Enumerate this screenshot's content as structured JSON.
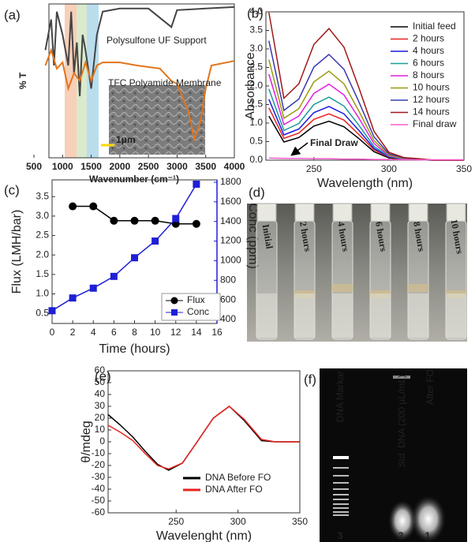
{
  "chart_data": [
    {
      "type": "line",
      "panel": "(a)",
      "xlabel": "Wavenumber (cm⁻¹)",
      "ylabel": "% T",
      "xlim": [
        500,
        4000
      ],
      "xticks": [
        500,
        1000,
        1500,
        2000,
        2500,
        3000,
        3500,
        4000
      ],
      "ylim": [
        0,
        100
      ],
      "series": [
        {
          "name": "Polysulfone UF Support",
          "color": "#444444",
          "x": [
            700,
            800,
            850,
            900,
            1000,
            1100,
            1150,
            1200,
            1250,
            1300,
            1350,
            1400,
            1500,
            1600,
            1700,
            2000,
            2500,
            2900,
            3000,
            3500,
            4000
          ],
          "values": [
            70,
            90,
            60,
            95,
            80,
            60,
            95,
            55,
            75,
            40,
            80,
            70,
            45,
            80,
            95,
            97,
            97,
            85,
            96,
            97,
            98
          ]
        },
        {
          "name": "TFC Polyamide Membrane",
          "color": "#e2741b",
          "x": [
            700,
            800,
            900,
            1000,
            1100,
            1200,
            1300,
            1400,
            1500,
            1600,
            1700,
            2000,
            2300,
            2700,
            2900,
            3000,
            3200,
            3300,
            3400,
            3500,
            3600,
            4000
          ],
          "values": [
            60,
            70,
            58,
            62,
            45,
            55,
            50,
            62,
            50,
            60,
            62,
            62,
            60,
            58,
            50,
            48,
            30,
            12,
            22,
            45,
            60,
            63
          ]
        }
      ],
      "annotations": [
        "1μm"
      ]
    },
    {
      "type": "line",
      "panel": "(b)",
      "xlabel": "Wavelength (nm)",
      "ylabel": "Absorbance",
      "xlim": [
        218,
        350
      ],
      "xticks": [
        250,
        300,
        350
      ],
      "ylim": [
        0,
        4
      ],
      "yticks": [
        {
          "value": 0,
          "label": "0.0"
        },
        0.5,
        {
          "value": 1,
          "label": "1.0"
        },
        1.5,
        {
          "value": 2,
          "label": "2.0"
        },
        2.5,
        {
          "value": 3,
          "label": "3.0"
        },
        3.5,
        {
          "value": 4,
          "label": "4.0"
        }
      ],
      "x": [
        220,
        230,
        240,
        250,
        260,
        270,
        280,
        290,
        300,
        310,
        320,
        330,
        340,
        350
      ],
      "series": [
        {
          "name": "Initial feed",
          "color": "#000000",
          "values": [
            1.19,
            0.49,
            0.61,
            0.92,
            1.05,
            0.9,
            0.58,
            0.23,
            0.06,
            0.02,
            0.01,
            0,
            0,
            0
          ]
        },
        {
          "name": "2 hours",
          "color": "#e8231f",
          "values": [
            1.41,
            0.59,
            0.73,
            1.1,
            1.25,
            1.08,
            0.69,
            0.28,
            0.08,
            0.03,
            0.01,
            0,
            0,
            0
          ]
        },
        {
          "name": "4 hours",
          "color": "#1a1adf",
          "values": [
            1.64,
            0.68,
            0.84,
            1.28,
            1.45,
            1.25,
            0.8,
            0.32,
            0.09,
            0.03,
            0.01,
            0,
            0,
            0
          ]
        },
        {
          "name": "6 hours",
          "color": "#1a9a9a",
          "values": [
            1.92,
            0.8,
            0.99,
            1.5,
            1.7,
            1.46,
            0.94,
            0.37,
            0.1,
            0.03,
            0.02,
            0,
            0,
            0
          ]
        },
        {
          "name": "8 hours",
          "color": "#e020e0",
          "values": [
            2.32,
            0.96,
            1.19,
            1.8,
            2.05,
            1.76,
            1.13,
            0.45,
            0.12,
            0.04,
            0.02,
            0,
            0,
            0
          ]
        },
        {
          "name": "10 hours",
          "color": "#9a9a10",
          "values": [
            2.71,
            1.13,
            1.39,
            2.11,
            2.4,
            2.06,
            1.32,
            0.53,
            0.14,
            0.05,
            0.02,
            0,
            0,
            0
          ]
        },
        {
          "name": "12 hours",
          "color": "#3a3ab0",
          "values": [
            3.22,
            1.34,
            1.65,
            2.51,
            2.85,
            2.45,
            1.57,
            0.63,
            0.17,
            0.06,
            0.03,
            0,
            0,
            0
          ]
        },
        {
          "name": "14 hours",
          "color": "#a01818",
          "values": [
            3.98,
            1.67,
            2.06,
            3.12,
            3.55,
            3.05,
            1.95,
            0.78,
            0.21,
            0.07,
            0.04,
            0,
            0,
            0
          ]
        },
        {
          "name": "Final draw",
          "color": "#ff5ccd",
          "values": [
            0.06,
            0.05,
            0.05,
            0.04,
            0.04,
            0.03,
            0.03,
            0.02,
            0.02,
            0.01,
            0.01,
            0.01,
            0.01,
            0.01
          ]
        }
      ],
      "legend": "upper right",
      "annotations": [
        "Final Draw"
      ]
    },
    {
      "type": "line",
      "panel": "(c)",
      "xlabel": "Time (hours)",
      "ylabel": "Flux (LMH/bar)",
      "y2label": "Conc (ppm)",
      "xlim": [
        0,
        16
      ],
      "xticks": [
        0,
        2,
        4,
        6,
        8,
        10,
        12,
        14,
        16
      ],
      "ylim": [
        0.24,
        3.93
      ],
      "yticks": [
        0.5,
        {
          "value": 1,
          "label": "1.0"
        },
        1.5,
        {
          "value": 2,
          "label": "2.0"
        },
        2.5,
        {
          "value": 3,
          "label": "3.0"
        },
        3.5
      ],
      "y2lim": [
        360,
        1824
      ],
      "y2ticks": [
        400,
        600,
        800,
        1000,
        1200,
        1400,
        1600,
        1800
      ],
      "series": [
        {
          "name": "Flux",
          "color": "#000000",
          "marker": "circle",
          "x": [
            2,
            4,
            6,
            8,
            10,
            12,
            14
          ],
          "values": [
            3.25,
            3.25,
            2.88,
            2.88,
            2.88,
            2.8,
            2.8
          ]
        },
        {
          "name": "Conc",
          "color": "#1f1fd6",
          "marker": "square",
          "axis": "y2",
          "x": [
            0,
            2,
            4,
            6,
            8,
            10,
            12,
            14
          ],
          "values": [
            490,
            620,
            720,
            840,
            1030,
            1200,
            1430,
            1780
          ]
        }
      ],
      "legend": "lower right"
    },
    {
      "type": "line",
      "panel": "(e)",
      "xlabel": "Wavelenght (nm)",
      "ylabel": "θ/mdeg",
      "xlim": [
        195,
        350
      ],
      "xticks": [
        250,
        300,
        350
      ],
      "ylim": [
        -60,
        60
      ],
      "yticks": [
        -60,
        -50,
        -40,
        -30,
        -20,
        -10,
        0,
        10,
        20,
        30,
        40,
        50,
        60
      ],
      "x": [
        195,
        205,
        215,
        225,
        235,
        244,
        255,
        267,
        280,
        293,
        305,
        319,
        330,
        340,
        350
      ],
      "series": [
        {
          "name": "DNA Before FO",
          "color": "#000000",
          "values": [
            23,
            14,
            4,
            -8,
            -19,
            -24,
            -18,
            0,
            20,
            30,
            18,
            1,
            0,
            0,
            0
          ]
        },
        {
          "name": "DNA After FO",
          "color": "#e8231f",
          "values": [
            14,
            8,
            1,
            -10,
            -20,
            -23,
            -18,
            0,
            20,
            30,
            19,
            2,
            0,
            0,
            0
          ]
        }
      ],
      "legend": "lower right"
    }
  ],
  "photo_panels": {
    "d": {
      "panel": "(d)",
      "vials": [
        "Initial",
        "2 hours",
        "4 hours",
        "6 hours",
        "8 hours",
        "10 hours"
      ]
    },
    "f": {
      "panel": "(f)",
      "lanes": [
        "DNA Markar",
        "Std. DNA (200 µL/mL)",
        "After FO"
      ],
      "lane_numbers": [
        "3",
        "2",
        "1"
      ]
    }
  }
}
